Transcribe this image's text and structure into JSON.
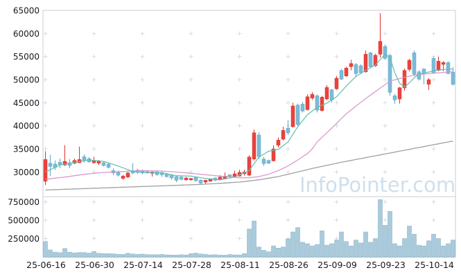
{
  "watermark": "InfoPointer.com",
  "chart_data": {
    "type": "candlestick",
    "panes": [
      "price",
      "volume"
    ],
    "x_axis": {
      "tick_labels": [
        "25-06-16",
        "25-06-30",
        "25-07-14",
        "25-07-28",
        "25-08-11",
        "25-08-26",
        "25-09-09",
        "25-09-23",
        "25-10-14"
      ],
      "tick_indices": [
        0,
        10,
        20,
        30,
        40,
        50,
        60,
        70,
        80
      ],
      "num_candles": 85
    },
    "price_axis": {
      "tick_labels": [
        "65000",
        "60000",
        "55000",
        "50000",
        "45000",
        "40000",
        "35000",
        "30000"
      ],
      "tick_values": [
        65000,
        60000,
        55000,
        50000,
        45000,
        40000,
        35000,
        30000
      ],
      "range": [
        24800,
        65750
      ]
    },
    "volume_axis": {
      "tick_labels": [
        "750000",
        "500000",
        "250000"
      ],
      "tick_values": [
        750000,
        500000,
        250000
      ],
      "range": [
        0,
        820000
      ]
    },
    "series": {
      "ohlcv_columns": [
        "open",
        "high",
        "low",
        "close",
        "volume"
      ],
      "candles": [
        [
          28000,
          34500,
          27200,
          32700,
          210000
        ],
        [
          31900,
          33700,
          29100,
          31200,
          95000
        ],
        [
          31700,
          32500,
          30400,
          31000,
          65000
        ],
        [
          32100,
          32900,
          30800,
          31600,
          58000
        ],
        [
          31500,
          35800,
          31300,
          32300,
          115000
        ],
        [
          32000,
          32800,
          30800,
          31400,
          65000
        ],
        [
          31900,
          32900,
          31700,
          32500,
          55000
        ],
        [
          32000,
          35500,
          31900,
          32700,
          60000
        ],
        [
          33300,
          33800,
          32000,
          32500,
          60000
        ],
        [
          32900,
          33200,
          32000,
          32200,
          52000
        ],
        [
          32000,
          33300,
          31800,
          32500,
          75000
        ],
        [
          31900,
          32600,
          31500,
          32400,
          50000
        ],
        [
          32000,
          32300,
          31200,
          31400,
          45000
        ],
        [
          31700,
          31900,
          30800,
          31000,
          45000
        ],
        [
          30300,
          30800,
          29300,
          29800,
          42000
        ],
        [
          30000,
          30300,
          29000,
          29300,
          36000
        ],
        [
          28600,
          29400,
          28300,
          29100,
          34000
        ],
        [
          28900,
          30000,
          28700,
          29800,
          50000
        ],
        [
          30300,
          31900,
          29500,
          29800,
          40000
        ],
        [
          30400,
          30700,
          29600,
          29900,
          34000
        ],
        [
          30300,
          30500,
          29500,
          29800,
          38000
        ],
        [
          30100,
          30300,
          29600,
          29800,
          32000
        ],
        [
          29700,
          30100,
          29000,
          30000,
          30000
        ],
        [
          30000,
          30200,
          29200,
          29400,
          30000
        ],
        [
          29900,
          30100,
          28900,
          29400,
          34000
        ],
        [
          29600,
          29800,
          28800,
          29000,
          28000
        ],
        [
          29400,
          29500,
          28300,
          28700,
          26000
        ],
        [
          29000,
          29100,
          27800,
          28200,
          25000
        ],
        [
          28900,
          29100,
          28200,
          28400,
          30000
        ],
        [
          28300,
          28900,
          28100,
          28700,
          27000
        ],
        [
          28300,
          28700,
          28100,
          28600,
          44000
        ],
        [
          28800,
          28900,
          27900,
          28100,
          52000
        ],
        [
          28200,
          28400,
          27400,
          27600,
          40000
        ],
        [
          27800,
          28300,
          27400,
          28200,
          34000
        ],
        [
          28000,
          28500,
          27900,
          28400,
          28000
        ],
        [
          28700,
          28800,
          28000,
          28200,
          30000
        ],
        [
          28300,
          29300,
          28200,
          28900,
          25000
        ],
        [
          28500,
          29900,
          28400,
          29100,
          24000
        ],
        [
          29400,
          29500,
          28800,
          28900,
          33000
        ],
        [
          29000,
          30300,
          28900,
          29600,
          28000
        ],
        [
          29100,
          30500,
          29000,
          29900,
          27000
        ],
        [
          29600,
          30500,
          29200,
          30000,
          45000
        ],
        [
          29300,
          33600,
          29100,
          33250,
          380000
        ],
        [
          32800,
          39200,
          32500,
          38500,
          490000
        ],
        [
          38000,
          38600,
          32800,
          33300,
          135000
        ],
        [
          32800,
          33300,
          31300,
          31800,
          90000
        ],
        [
          32500,
          32700,
          31700,
          31900,
          70000
        ],
        [
          32400,
          35800,
          32300,
          35000,
          150000
        ],
        [
          35800,
          37500,
          35300,
          36900,
          120000
        ],
        [
          37100,
          39800,
          36800,
          39000,
          135000
        ],
        [
          39500,
          41200,
          38000,
          38500,
          245000
        ],
        [
          39800,
          45000,
          39600,
          44300,
          340000
        ],
        [
          44500,
          44800,
          39800,
          40300,
          400000
        ],
        [
          44700,
          45200,
          42900,
          43200,
          200000
        ],
        [
          43500,
          46800,
          43300,
          46300,
          180000
        ],
        [
          46000,
          47300,
          45600,
          46800,
          150000
        ],
        [
          46500,
          46800,
          42900,
          43400,
          170000
        ],
        [
          43300,
          46500,
          43100,
          46200,
          355000
        ],
        [
          45800,
          48800,
          45600,
          48300,
          160000
        ],
        [
          47800,
          48000,
          45000,
          45600,
          180000
        ],
        [
          48000,
          50800,
          47800,
          50300,
          230000
        ],
        [
          52000,
          52300,
          49900,
          50100,
          340000
        ],
        [
          50800,
          52800,
          50600,
          52500,
          210000
        ],
        [
          52800,
          54300,
          52000,
          53500,
          150000
        ],
        [
          53300,
          53600,
          50500,
          51300,
          230000
        ],
        [
          53000,
          53300,
          51200,
          51500,
          190000
        ],
        [
          51700,
          56300,
          51500,
          55500,
          340000
        ],
        [
          55800,
          56000,
          52500,
          52800,
          200000
        ],
        [
          53000,
          55600,
          52800,
          55300,
          250000
        ],
        [
          55500,
          64400,
          54800,
          58300,
          780000
        ],
        [
          57200,
          57600,
          54300,
          54600,
          430000
        ],
        [
          55250,
          55600,
          46500,
          47250,
          620000
        ],
        [
          46500,
          46900,
          44750,
          45600,
          180000
        ],
        [
          45800,
          48400,
          44800,
          48250,
          150000
        ],
        [
          48200,
          52400,
          47600,
          52000,
          250000
        ],
        [
          52200,
          54500,
          51800,
          54200,
          420000
        ],
        [
          55800,
          56300,
          50700,
          51200,
          310000
        ],
        [
          51700,
          52000,
          49800,
          50100,
          160000
        ],
        [
          52300,
          52500,
          49000,
          51500,
          150000
        ],
        [
          49000,
          50300,
          47750,
          50000,
          220000
        ],
        [
          54600,
          55000,
          51300,
          51500,
          310000
        ],
        [
          52000,
          55000,
          51800,
          54000,
          250000
        ],
        [
          53300,
          54000,
          51800,
          53700,
          150000
        ],
        [
          53700,
          54000,
          51200,
          51300,
          180000
        ],
        [
          51600,
          52700,
          48700,
          49000,
          230000
        ]
      ],
      "ma_short_points": [
        [
          0,
          30000
        ],
        [
          3,
          31500
        ],
        [
          6,
          32100
        ],
        [
          9,
          32600
        ],
        [
          12,
          32300
        ],
        [
          15,
          31300
        ],
        [
          18,
          30100
        ],
        [
          21,
          29900
        ],
        [
          24,
          29800
        ],
        [
          27,
          29200
        ],
        [
          30,
          29100
        ],
        [
          33,
          28600
        ],
        [
          36,
          28300
        ],
        [
          39,
          28900
        ],
        [
          42,
          30300
        ],
        [
          43,
          31800
        ],
        [
          44,
          33200
        ],
        [
          46,
          34500
        ],
        [
          48,
          34900
        ],
        [
          50,
          36500
        ],
        [
          52,
          39800
        ],
        [
          54,
          42400
        ],
        [
          56,
          44000
        ],
        [
          58,
          44900
        ],
        [
          60,
          46300
        ],
        [
          62,
          48600
        ],
        [
          64,
          50700
        ],
        [
          66,
          52000
        ],
        [
          68,
          53200
        ],
        [
          70,
          55500
        ],
        [
          71,
          54800
        ],
        [
          72,
          51500
        ],
        [
          73,
          49200
        ],
        [
          74,
          48400
        ],
        [
          75,
          49300
        ],
        [
          76,
          50400
        ],
        [
          77,
          51200
        ],
        [
          78,
          51400
        ],
        [
          80,
          51900
        ],
        [
          82,
          52200
        ],
        [
          84,
          52300
        ]
      ],
      "ma_mid_points": [
        [
          0,
          28400
        ],
        [
          4,
          28900
        ],
        [
          8,
          29500
        ],
        [
          12,
          29900
        ],
        [
          16,
          30100
        ],
        [
          20,
          30300
        ],
        [
          24,
          30200
        ],
        [
          28,
          29900
        ],
        [
          32,
          29500
        ],
        [
          36,
          29100
        ],
        [
          40,
          28750
        ],
        [
          42,
          28750
        ],
        [
          44,
          29000
        ],
        [
          46,
          29500
        ],
        [
          48,
          30300
        ],
        [
          50,
          31300
        ],
        [
          52,
          32600
        ],
        [
          54,
          34000
        ],
        [
          55,
          35000
        ],
        [
          56,
          36500
        ],
        [
          59,
          39500
        ],
        [
          62,
          42600
        ],
        [
          66,
          45900
        ],
        [
          71,
          49700
        ],
        [
          76,
          51000
        ],
        [
          80,
          51400
        ],
        [
          84,
          51700
        ]
      ],
      "ma_long_points": [
        [
          0,
          26100
        ],
        [
          8,
          26400
        ],
        [
          16,
          26700
        ],
        [
          24,
          27000
        ],
        [
          32,
          27300
        ],
        [
          40,
          27800
        ],
        [
          44,
          28300
        ],
        [
          48,
          29000
        ],
        [
          52,
          30000
        ],
        [
          56,
          31000
        ],
        [
          60,
          31900
        ],
        [
          64,
          32700
        ],
        [
          68,
          33500
        ],
        [
          72,
          34300
        ],
        [
          76,
          35100
        ],
        [
          80,
          35900
        ],
        [
          84,
          36700
        ]
      ]
    },
    "colors": {
      "up": "#e8443c",
      "up_stroke": "#dc352f",
      "down": "#7bbcd7",
      "down_stroke": "#5ba6c4",
      "volume": "#aacbdc",
      "volume_stroke": "#82abc0",
      "ma_short": "#62c0b1",
      "ma_mid": "#d795cd",
      "ma_long": "#9b9b9b",
      "watermark": "#cfdfeb",
      "frame": "#c7ced6",
      "grid": "#d8dce1",
      "text": "#16191d"
    }
  }
}
